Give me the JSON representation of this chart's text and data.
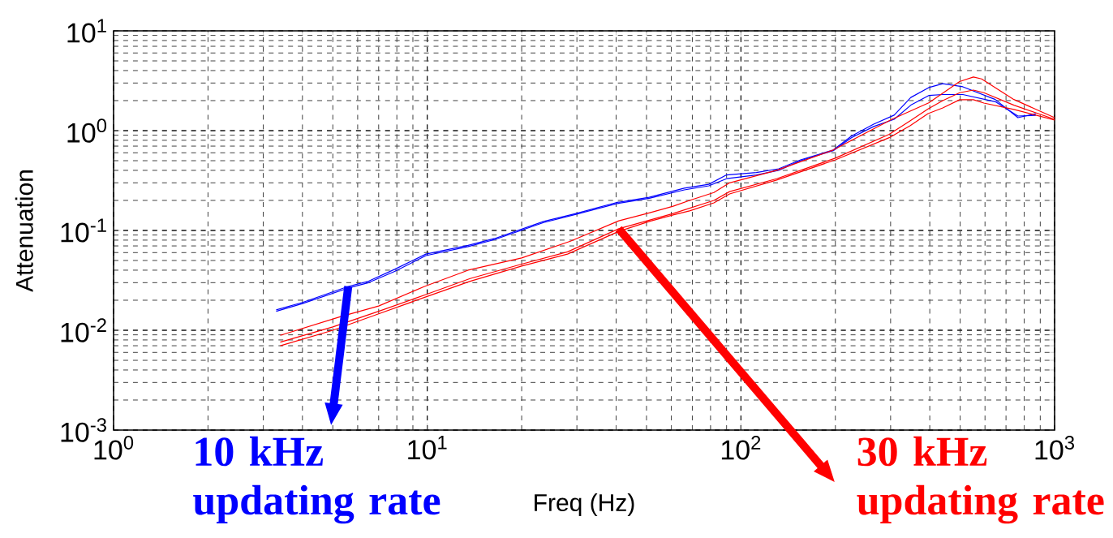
{
  "chart_data": {
    "type": "line",
    "xlabel": "Freq (Hz)",
    "ylabel": "Attenuation",
    "log": "xy",
    "grid": true,
    "marker": "none",
    "line_style": "solid",
    "xlim": [
      1,
      1000
    ],
    "ylim": [
      0.001,
      10
    ],
    "xticks": [
      {
        "value": 1,
        "label": "10$^{0}$"
      },
      {
        "value": 10,
        "label": "10$^{1}$"
      },
      {
        "value": 100,
        "label": "10$^{2}$"
      },
      {
        "value": 1000,
        "label": "10$^{3}$"
      }
    ],
    "yticks": [
      {
        "value": 0.001,
        "label": "10$^{-3}$"
      },
      {
        "value": 0.01,
        "label": "10$^{-2}$"
      },
      {
        "value": 0.1,
        "label": "10$^{-1}$"
      },
      {
        "value": 1,
        "label": "10$^{0}$"
      },
      {
        "value": 10,
        "label": "10$^{1}$"
      }
    ],
    "series": [
      {
        "color": "#0000ff",
        "x": [
          3.3,
          4.0,
          5.6,
          6.5,
          7.9,
          9.9,
          13.5,
          16.4,
          23.5,
          29.8,
          40,
          51,
          66,
          79,
          90,
          112,
          132,
          155,
          197,
          225,
          265,
          308,
          348,
          397,
          440,
          510,
          647,
          764,
          871
        ],
        "values": [
          0.016,
          0.019,
          0.0275,
          0.031,
          0.041,
          0.058,
          0.071,
          0.083,
          0.123,
          0.148,
          0.19,
          0.215,
          0.265,
          0.29,
          0.36,
          0.38,
          0.415,
          0.51,
          0.64,
          0.88,
          1.16,
          1.43,
          2.15,
          2.7,
          2.95,
          2.75,
          2.05,
          1.35,
          1.48
        ]
      },
      {
        "color": "#0000ff",
        "x": [
          3.3,
          4.0,
          5.6,
          6.5,
          7.9,
          9.9,
          13.5,
          16.4,
          23.5,
          29.8,
          40,
          51,
          66,
          79,
          90,
          112,
          132,
          155,
          197,
          225,
          265,
          308,
          348,
          397,
          440,
          510,
          647,
          764,
          871
        ],
        "values": [
          0.0155,
          0.0185,
          0.0265,
          0.03,
          0.039,
          0.056,
          0.069,
          0.081,
          0.12,
          0.145,
          0.185,
          0.21,
          0.255,
          0.28,
          0.33,
          0.36,
          0.4,
          0.5,
          0.63,
          0.85,
          1.1,
          1.3,
          1.8,
          2.25,
          2.3,
          2.3,
          1.95,
          1.4,
          1.42
        ]
      },
      {
        "color": "#ff0000",
        "x": [
          3.4,
          5.3,
          7.0,
          9.8,
          13.5,
          20,
          28.6,
          40.8,
          51,
          60.8,
          68.6,
          82,
          92,
          130,
          197,
          303,
          397,
          498,
          551,
          585,
          742,
          1000
        ],
        "values": [
          0.0089,
          0.0137,
          0.0175,
          0.0275,
          0.04,
          0.053,
          0.078,
          0.125,
          0.15,
          0.175,
          0.2,
          0.24,
          0.3,
          0.4,
          0.64,
          1.3,
          1.9,
          3.1,
          3.45,
          3.3,
          2.05,
          1.35
        ]
      },
      {
        "color": "#ff0000",
        "x": [
          3.4,
          5.0,
          7.0,
          9.9,
          13.7,
          20,
          28,
          40.8,
          60.8,
          82,
          92,
          130,
          200,
          297,
          346,
          395,
          440,
          498,
          551,
          595,
          742,
          1000
        ],
        "values": [
          0.0076,
          0.0108,
          0.0155,
          0.0228,
          0.033,
          0.046,
          0.061,
          0.104,
          0.148,
          0.2,
          0.245,
          0.33,
          0.53,
          0.92,
          1.25,
          1.65,
          2.0,
          2.4,
          2.55,
          2.4,
          1.8,
          1.3
        ]
      },
      {
        "color": "#ff0000",
        "x": [
          3.4,
          5.0,
          7.0,
          9.9,
          13.7,
          20,
          28,
          40.8,
          51,
          60.8,
          68.6,
          82,
          92,
          130,
          200,
          297,
          346,
          395,
          440,
          498,
          551,
          595,
          742,
          1000
        ],
        "values": [
          0.007,
          0.01,
          0.0146,
          0.0216,
          0.031,
          0.044,
          0.058,
          0.098,
          0.123,
          0.143,
          0.157,
          0.189,
          0.232,
          0.32,
          0.51,
          0.85,
          1.12,
          1.48,
          1.69,
          2.04,
          2.04,
          1.89,
          1.63,
          1.28
        ]
      }
    ],
    "annotations": [
      {
        "text": "10 kHz updating rate",
        "x": 5.6,
        "y": 0.0275
      },
      {
        "text": "30 kHz updating rate",
        "x": 40.8,
        "y": 0.104
      }
    ]
  }
}
